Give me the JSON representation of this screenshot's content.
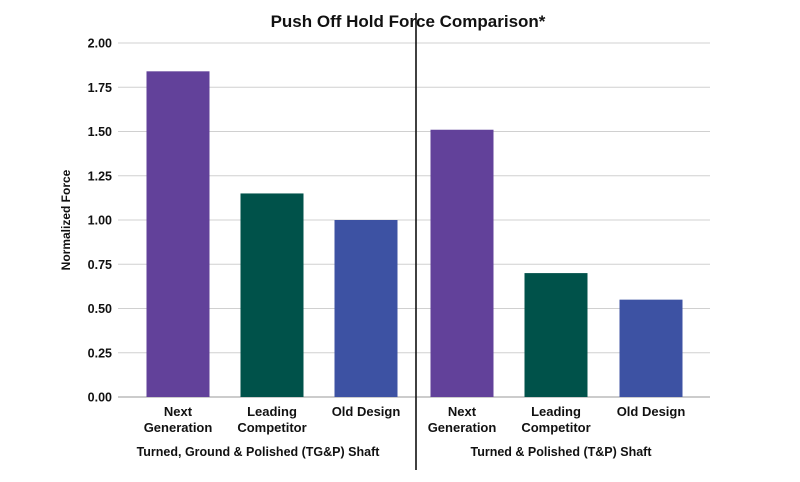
{
  "chart_data": {
    "type": "bar",
    "title": "Push Off Hold Force Comparison*",
    "ylabel": "Normalized Force",
    "xlabel": "",
    "ylim": [
      0,
      2.0
    ],
    "yticks": [
      "0.00",
      "0.25",
      "0.50",
      "0.75",
      "1.00",
      "1.25",
      "1.50",
      "1.75",
      "2.00"
    ],
    "ytick_values": [
      0,
      0.25,
      0.5,
      0.75,
      1.0,
      1.25,
      1.5,
      1.75,
      2.0
    ],
    "grid": true,
    "groups": [
      {
        "label": "Turned, Ground & Polished (TG&P) Shaft",
        "bars": [
          {
            "category": [
              "Next",
              "Generation"
            ],
            "value": 1.84,
            "color": "#62419a"
          },
          {
            "category": [
              "Leading",
              "Competitor"
            ],
            "value": 1.15,
            "color": "#00524a"
          },
          {
            "category": [
              "Old Design"
            ],
            "value": 1.0,
            "color": "#3d52a3"
          }
        ]
      },
      {
        "label": "Turned & Polished (T&P) Shaft",
        "bars": [
          {
            "category": [
              "Next",
              "Generation"
            ],
            "value": 1.51,
            "color": "#62419a"
          },
          {
            "category": [
              "Leading",
              "Competitor"
            ],
            "value": 0.7,
            "color": "#00524a"
          },
          {
            "category": [
              "Old Design"
            ],
            "value": 0.55,
            "color": "#3d52a3"
          }
        ]
      }
    ]
  }
}
